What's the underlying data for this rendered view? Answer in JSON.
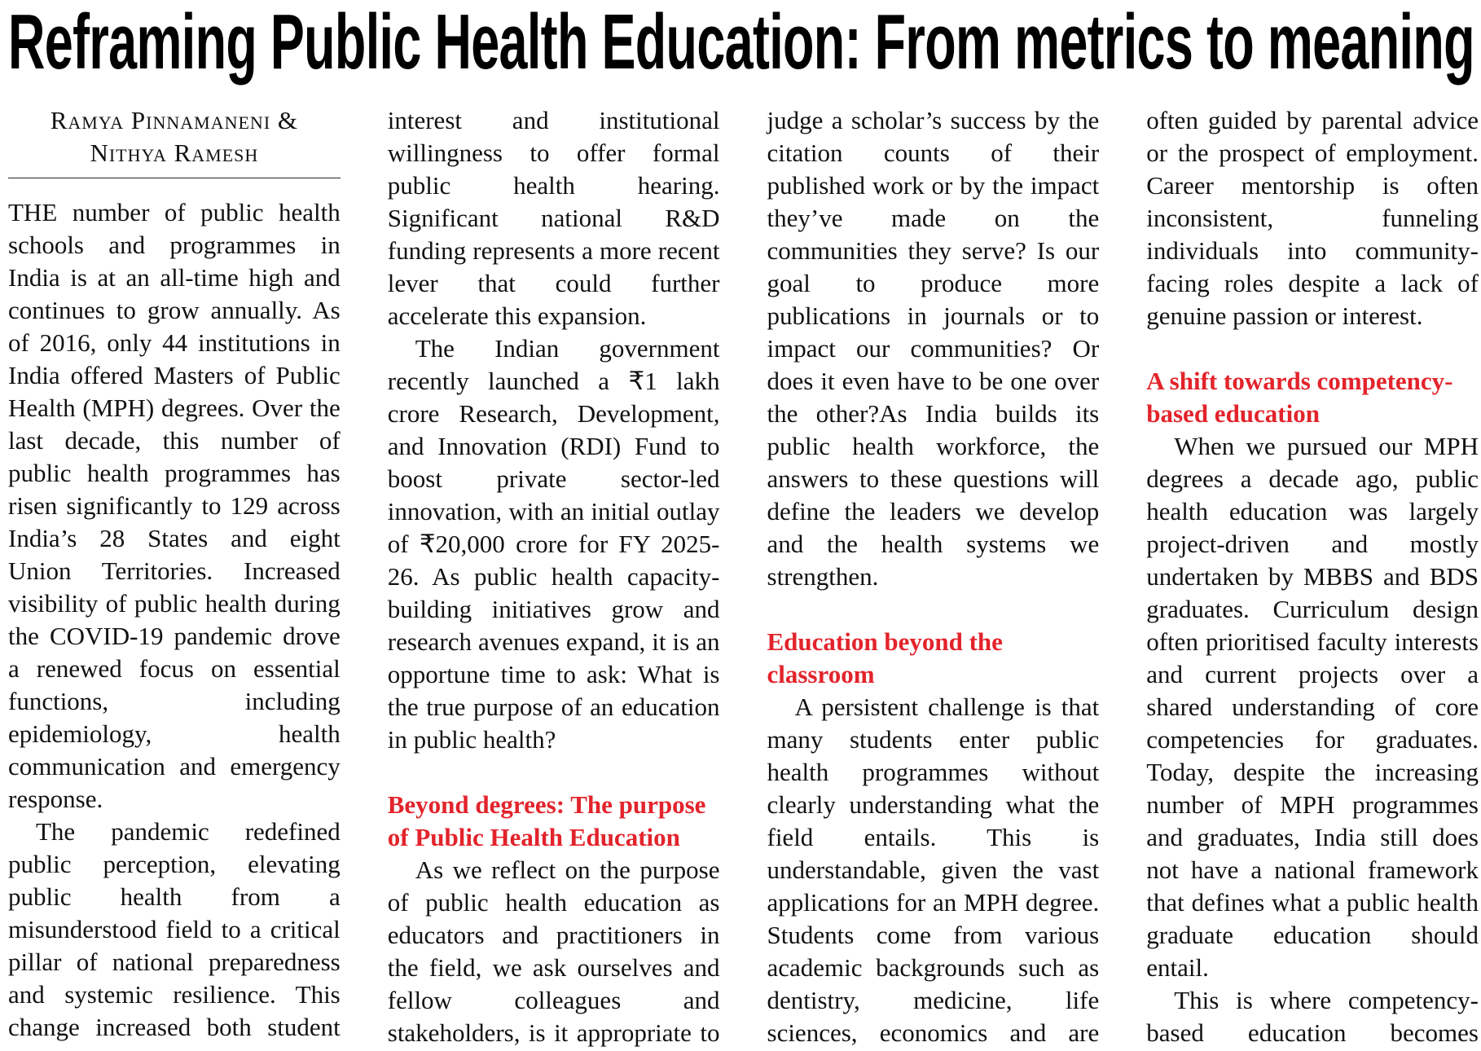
{
  "article": {
    "title": "Reframing Public Health Education: From metrics to meaning",
    "byline_line1": "Ramya Pinnamaneni &",
    "byline_line2": "Nithya Ramesh",
    "accent_color": "#e3232b",
    "paragraphs": [
      "THE number of public health schools and programmes in India is at an all-time high and continues to grow annually. As of 2016, only 44 institutions in India offered Masters of Public Health (MPH) degrees. Over the last decade, this number of public health programmes has risen significantly to 129 across India’s 28 States and eight Union Territories. Increased visibility of public health during the COVID-19 pandemic drove a renewed focus on essential functions, including epidemiology, health communication and emergency response.",
      "The pandemic redefined public perception, elevating public health from a misunderstood field to a critical pillar of national preparedness and systemic resilience. This change increased both student interest and institutional willingness to offer formal public health hearing. Significant national R&D funding represents a more recent lever that could further accelerate this expansion.",
      "The Indian government recently launched a ₹1 lakh crore Research, Development, and Innovation (RDI) Fund to boost private sector-led innovation, with an initial outlay of ₹20,000 crore for FY 2025-26. As public health capacity-building initiatives grow and research avenues expand, it is an opportune time to ask: What is the true purpose of an education in public health?",
      "As we reflect on the purpose of public health education as educators and practitioners in the field, we ask ourselves and fellow colleagues and stakeholders, is it appropriate to judge a scholar’s success by the citation counts of their published work or by the impact they’ve made on the communities they serve? Is our goal to produce more publications in journals or to impact our communities? Or does it even have to be one over the other?As India builds its public health workforce, the answers to these questions will define the leaders we develop and the health systems we strengthen.",
      "A persistent challenge is that many students enter public health programmes without clearly understanding what the field entails. This is understandable, given the vast applications for an MPH degree. Students come from various academic backgrounds such as dentistry, medicine, life sciences, economics and are often guided by parental advice or the prospect of employment. Career mentorship is often inconsistent, funneling individuals into community-facing roles despite a lack of genuine passion or interest.",
      "When we pursued our MPH degrees a decade ago, public health education was largely project-driven and mostly undertaken by MBBS and BDS graduates. Curriculum design often prioritised faculty interests and current projects over a shared understanding of core competencies for graduates. Today, despite the increasing number of MPH programmes and graduates, India still does not have a national framework that defines what a public health graduate education should entail.",
      "This is where competency-based education becomes important."
    ],
    "headings": [
      "Beyond degrees: The purpose of Public Health Education",
      "Education beyond the classroom",
      "A shift towards competency-based education"
    ]
  }
}
